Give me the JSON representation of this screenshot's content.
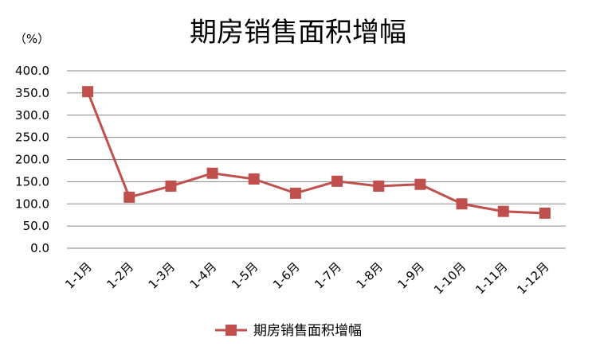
{
  "chart_data": {
    "type": "line",
    "title": "期房销售面积增幅",
    "unit_label": "（%）",
    "xlabel": "",
    "ylabel": "",
    "categories": [
      "1-1月",
      "1-2月",
      "1-3月",
      "1-4月",
      "1-5月",
      "1-6月",
      "1-7月",
      "1-8月",
      "1-9月",
      "1-10月",
      "1-11月",
      "1-12月"
    ],
    "series": [
      {
        "name": "期房销售面积增幅",
        "color": "#c0504d",
        "marker": "square",
        "values": [
          353,
          115,
          140,
          169,
          156,
          124,
          151,
          140,
          144,
          100,
          83,
          79
        ]
      }
    ],
    "ylim": [
      0,
      400
    ],
    "yticks": [
      "0.0",
      "50.0",
      "100.0",
      "150.0",
      "200.0",
      "250.0",
      "300.0",
      "350.0",
      "400.0"
    ],
    "grid": true,
    "legend_position": "bottom"
  }
}
